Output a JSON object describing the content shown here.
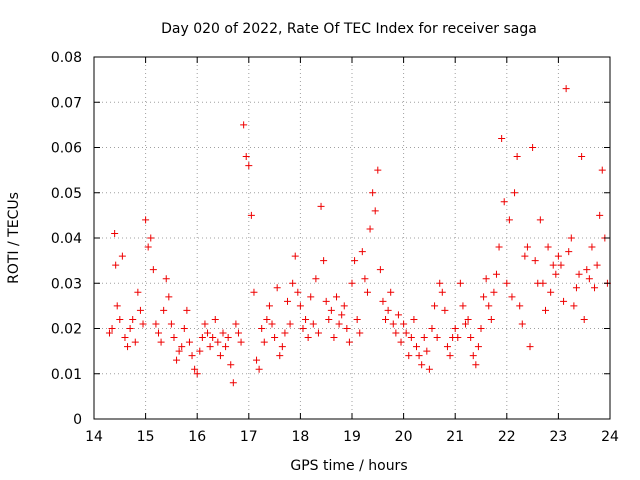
{
  "chart_data": {
    "type": "scatter",
    "title": "Day 020 of 2022, Rate Of TEC Index for receiver saga",
    "xlabel": "GPS time / hours",
    "ylabel": "ROTI / TECUs",
    "xlim": [
      14,
      24
    ],
    "ylim": [
      0,
      0.08
    ],
    "xticks": [
      14,
      15,
      16,
      17,
      18,
      19,
      20,
      21,
      22,
      23,
      24
    ],
    "yticks": [
      0,
      0.01,
      0.02,
      0.03,
      0.04,
      0.05,
      0.06,
      0.07,
      0.08
    ],
    "grid": true,
    "marker": "+",
    "color": "#ee0000",
    "series": [
      {
        "name": "ROTI",
        "x": [
          14.3,
          14.35,
          14.4,
          14.42,
          14.45,
          14.5,
          14.55,
          14.6,
          14.65,
          14.7,
          14.75,
          14.8,
          14.85,
          14.9,
          14.95,
          15.0,
          15.05,
          15.1,
          15.15,
          15.2,
          15.25,
          15.3,
          15.35,
          15.4,
          15.45,
          15.5,
          15.55,
          15.6,
          15.65,
          15.7,
          15.75,
          15.8,
          15.85,
          15.9,
          15.95,
          16.0,
          16.05,
          16.1,
          16.15,
          16.2,
          16.25,
          16.3,
          16.35,
          16.4,
          16.45,
          16.5,
          16.55,
          16.6,
          16.65,
          16.7,
          16.75,
          16.8,
          16.85,
          16.9,
          16.95,
          17.0,
          17.05,
          17.1,
          17.15,
          17.2,
          17.25,
          17.3,
          17.35,
          17.4,
          17.45,
          17.5,
          17.55,
          17.6,
          17.65,
          17.7,
          17.75,
          17.8,
          17.85,
          17.9,
          17.95,
          18.0,
          18.05,
          18.1,
          18.15,
          18.2,
          18.25,
          18.3,
          18.35,
          18.4,
          18.45,
          18.5,
          18.55,
          18.6,
          18.65,
          18.7,
          18.75,
          18.8,
          18.85,
          18.9,
          18.95,
          19.0,
          19.05,
          19.1,
          19.15,
          19.2,
          19.25,
          19.3,
          19.35,
          19.4,
          19.45,
          19.5,
          19.55,
          19.6,
          19.65,
          19.7,
          19.75,
          19.8,
          19.85,
          19.9,
          19.95,
          20.0,
          20.05,
          20.1,
          20.15,
          20.2,
          20.25,
          20.3,
          20.35,
          20.4,
          20.45,
          20.5,
          20.55,
          20.6,
          20.65,
          20.7,
          20.75,
          20.8,
          20.85,
          20.9,
          20.95,
          21.0,
          21.05,
          21.1,
          21.15,
          21.2,
          21.25,
          21.3,
          21.35,
          21.4,
          21.45,
          21.5,
          21.55,
          21.6,
          21.65,
          21.7,
          21.75,
          21.8,
          21.85,
          21.9,
          21.95,
          22.0,
          22.05,
          22.1,
          22.15,
          22.2,
          22.25,
          22.3,
          22.35,
          22.4,
          22.45,
          22.5,
          22.55,
          22.6,
          22.65,
          22.7,
          22.75,
          22.8,
          22.85,
          22.9,
          22.95,
          23.0,
          23.05,
          23.1,
          23.15,
          23.2,
          23.25,
          23.3,
          23.35,
          23.4,
          23.45,
          23.5,
          23.55,
          23.6,
          23.65,
          23.7,
          23.75,
          23.8,
          23.85,
          23.9,
          23.95
        ],
        "y": [
          0.019,
          0.02,
          0.041,
          0.034,
          0.025,
          0.022,
          0.036,
          0.018,
          0.016,
          0.02,
          0.022,
          0.017,
          0.028,
          0.024,
          0.021,
          0.044,
          0.038,
          0.04,
          0.033,
          0.021,
          0.019,
          0.017,
          0.024,
          0.031,
          0.027,
          0.021,
          0.018,
          0.013,
          0.015,
          0.016,
          0.02,
          0.024,
          0.017,
          0.014,
          0.011,
          0.01,
          0.015,
          0.018,
          0.021,
          0.019,
          0.016,
          0.018,
          0.022,
          0.017,
          0.014,
          0.019,
          0.016,
          0.018,
          0.012,
          0.008,
          0.021,
          0.019,
          0.017,
          0.065,
          0.058,
          0.056,
          0.045,
          0.028,
          0.013,
          0.011,
          0.02,
          0.017,
          0.022,
          0.025,
          0.021,
          0.018,
          0.029,
          0.014,
          0.016,
          0.019,
          0.026,
          0.021,
          0.03,
          0.036,
          0.028,
          0.025,
          0.02,
          0.022,
          0.018,
          0.027,
          0.021,
          0.031,
          0.019,
          0.047,
          0.035,
          0.026,
          0.022,
          0.024,
          0.018,
          0.027,
          0.021,
          0.023,
          0.025,
          0.02,
          0.017,
          0.03,
          0.035,
          0.022,
          0.019,
          0.037,
          0.031,
          0.028,
          0.042,
          0.05,
          0.046,
          0.055,
          0.033,
          0.026,
          0.022,
          0.024,
          0.028,
          0.021,
          0.019,
          0.023,
          0.017,
          0.021,
          0.019,
          0.014,
          0.018,
          0.022,
          0.016,
          0.014,
          0.012,
          0.018,
          0.015,
          0.011,
          0.02,
          0.025,
          0.018,
          0.03,
          0.028,
          0.024,
          0.016,
          0.014,
          0.018,
          0.02,
          0.018,
          0.03,
          0.025,
          0.021,
          0.022,
          0.018,
          0.014,
          0.012,
          0.016,
          0.02,
          0.027,
          0.031,
          0.025,
          0.022,
          0.028,
          0.032,
          0.038,
          0.062,
          0.048,
          0.03,
          0.044,
          0.027,
          0.05,
          0.058,
          0.025,
          0.021,
          0.036,
          0.038,
          0.016,
          0.06,
          0.035,
          0.03,
          0.044,
          0.03,
          0.024,
          0.038,
          0.028,
          0.034,
          0.032,
          0.036,
          0.034,
          0.026,
          0.073,
          0.037,
          0.04,
          0.025,
          0.029,
          0.032,
          0.058,
          0.022,
          0.033,
          0.031,
          0.038,
          0.029,
          0.034,
          0.045,
          0.055,
          0.04,
          0.03
        ]
      }
    ]
  }
}
